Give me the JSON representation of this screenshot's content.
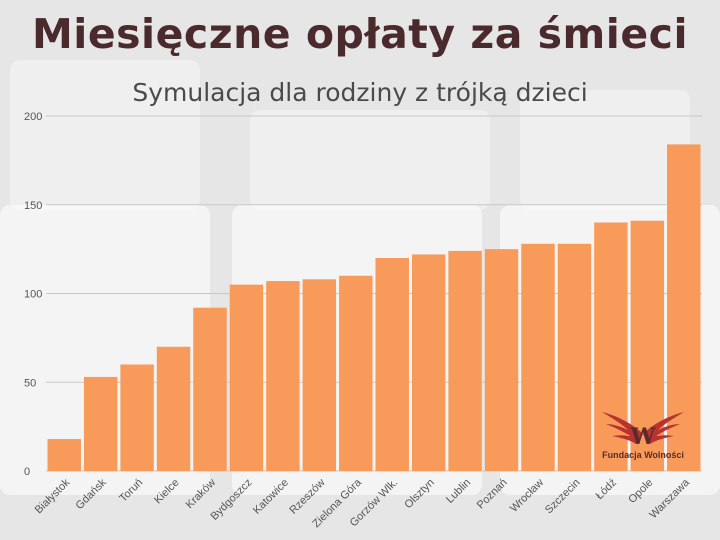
{
  "title": "Miesięczne opłaty za śmieci",
  "subtitle": "Symulacja dla rodziny z trójką dzieci",
  "logo": {
    "text": "Fundacja Wolności",
    "letter": "W",
    "icon": "wings-logo-icon"
  },
  "colors": {
    "bar": "#f89a5a",
    "title": "#4a2a2c",
    "grid": "#c8c8c8",
    "logo": "#b8322e"
  },
  "chart_data": {
    "type": "bar",
    "title": "Miesięczne opłaty za śmieci",
    "subtitle": "Symulacja dla rodziny z trójką dzieci",
    "xlabel": "",
    "ylabel": "",
    "ylim": [
      0,
      200
    ],
    "yticks": [
      0,
      50,
      100,
      150,
      200
    ],
    "grid": true,
    "categories": [
      "Białystok",
      "Gdańsk",
      "Toruń",
      "Kielce",
      "Kraków",
      "Bydgoszcz",
      "Katowice",
      "Rzeszów",
      "Zielona Góra",
      "Gorzów Wlk.",
      "Olsztyn",
      "Lublin",
      "Poznań",
      "Wrocław",
      "Szczecin",
      "Łódź",
      "Opole",
      "Warszawa"
    ],
    "values": [
      18,
      53,
      60,
      70,
      92,
      105,
      107,
      108,
      110,
      120,
      122,
      124,
      125,
      128,
      128,
      140,
      141,
      184
    ]
  }
}
